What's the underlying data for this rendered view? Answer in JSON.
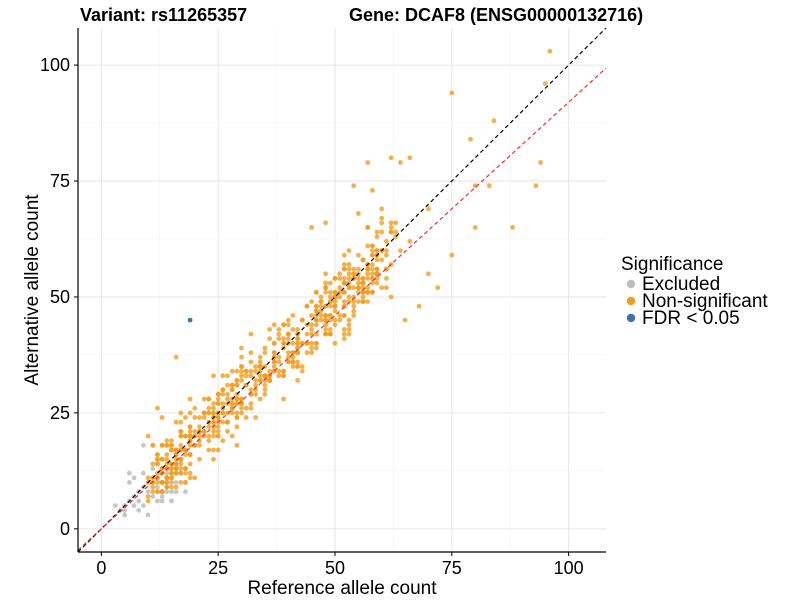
{
  "chart_data": {
    "type": "scatter",
    "title_left": "Variant: rs11265357",
    "title_right": "Gene: DCAF8 (ENSG00000132716)",
    "xlabel": "Reference allele count",
    "ylabel": "Alternative allele count",
    "xlim": [
      -5,
      108
    ],
    "ylim": [
      -5,
      108
    ],
    "xticks": [
      0,
      25,
      50,
      75,
      100
    ],
    "yticks": [
      0,
      25,
      50,
      75,
      100
    ],
    "grid": true,
    "legend": {
      "title": "Significance",
      "placement": "right",
      "entries": [
        {
          "label": "Excluded",
          "color": "#bdbdbd"
        },
        {
          "label": "Non-significant",
          "color": "#f39c1f"
        },
        {
          "label": "FDR < 0.05",
          "color": "#3f72ad"
        }
      ]
    },
    "reference_lines": [
      {
        "slope": 1.0,
        "intercept": 0,
        "color": "#000000",
        "style": "dashed"
      },
      {
        "slope": 0.92,
        "intercept": 0,
        "color": "#e8312b",
        "style": "dashed"
      }
    ],
    "series": [
      {
        "name": "Excluded",
        "color": "#bdbdbd",
        "points": [
          [
            4,
            4
          ],
          [
            5,
            5
          ],
          [
            5,
            3
          ],
          [
            6,
            10
          ],
          [
            6,
            12
          ],
          [
            7,
            7
          ],
          [
            7,
            11
          ],
          [
            7,
            5
          ],
          [
            8,
            8
          ],
          [
            8,
            6
          ],
          [
            9,
            18
          ],
          [
            9,
            9
          ],
          [
            9,
            12
          ],
          [
            9,
            5
          ],
          [
            10,
            10
          ],
          [
            10,
            3
          ],
          [
            10,
            8
          ],
          [
            11,
            11
          ],
          [
            11,
            13
          ],
          [
            11,
            7
          ],
          [
            12,
            9
          ],
          [
            12,
            6
          ],
          [
            13,
            7
          ],
          [
            13,
            12
          ],
          [
            13,
            6
          ],
          [
            14,
            8
          ],
          [
            14,
            10
          ],
          [
            15,
            8
          ],
          [
            15,
            6
          ],
          [
            16,
            10
          ],
          [
            17,
            12
          ],
          [
            18,
            10
          ],
          [
            18,
            8
          ],
          [
            8,
            4
          ],
          [
            6,
            6
          ],
          [
            5,
            4
          ],
          [
            3,
            5
          ],
          [
            12,
            11
          ],
          [
            14,
            12
          ],
          [
            16,
            8
          ]
        ]
      },
      {
        "name": "Non-significant",
        "color": "#f39c1f",
        "points": []
      },
      {
        "name": "FDR < 0.05",
        "color": "#3f72ad",
        "points": [
          [
            19,
            45
          ]
        ]
      }
    ]
  }
}
